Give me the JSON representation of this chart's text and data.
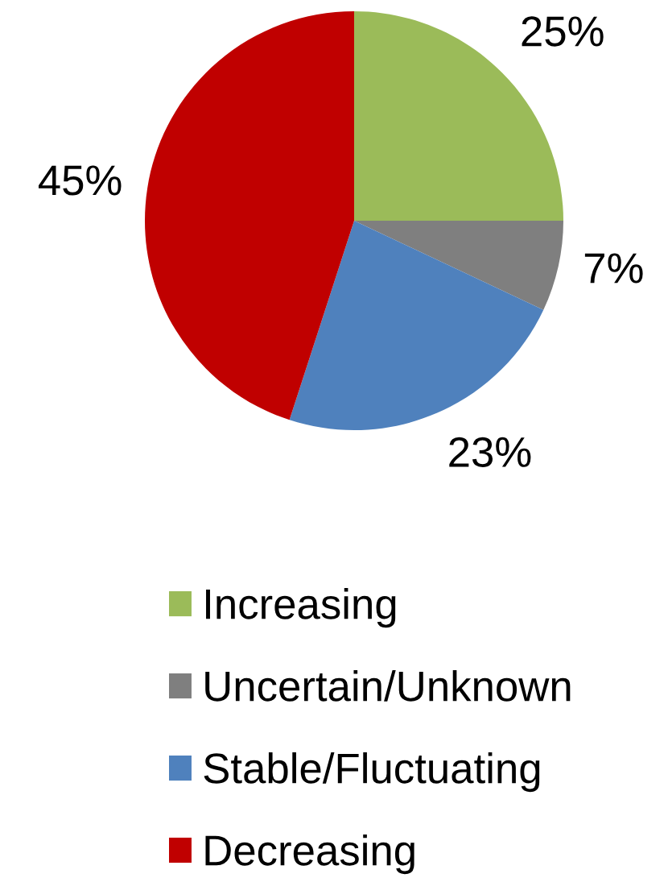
{
  "chart_data": {
    "type": "pie",
    "categories": [
      "Increasing",
      "Uncertain/Unknown",
      "Stable/Fluctuating",
      "Decreasing"
    ],
    "values": [
      25,
      7,
      23,
      45
    ],
    "colors": [
      "#9bbb59",
      "#7f7f7f",
      "#4f81bd",
      "#c00000"
    ],
    "value_labels": [
      "25%",
      "7%",
      "23%",
      "45%"
    ],
    "legend": "bottom"
  }
}
